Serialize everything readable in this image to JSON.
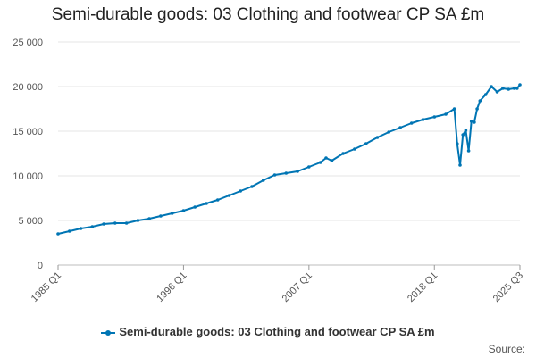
{
  "chart_data": {
    "type": "line",
    "title": "Semi-durable goods: 03 Clothing and footwear CP SA £m",
    "xlabel": "",
    "ylabel": "",
    "ylim": [
      0,
      25000
    ],
    "yticks": [
      0,
      5000,
      10000,
      15000,
      20000,
      25000
    ],
    "ytick_labels": [
      "0",
      "5 000",
      "10 000",
      "15 000",
      "20 000",
      "25 000"
    ],
    "xticks": [
      "1985 Q1",
      "1996 Q1",
      "2007 Q1",
      "2018 Q1",
      "2025 Q3"
    ],
    "x_start": "1985 Q1",
    "x_end": "2025 Q3",
    "grid": "horizontal",
    "legend_position": "bottom",
    "series": [
      {
        "name": "Semi-durable goods: 03 Clothing and footwear CP SA £m",
        "color": "#0075b4",
        "marker": "circle",
        "x": [
          "1985 Q1",
          "1986 Q1",
          "1987 Q1",
          "1988 Q1",
          "1989 Q1",
          "1990 Q1",
          "1991 Q1",
          "1992 Q1",
          "1993 Q1",
          "1994 Q1",
          "1995 Q1",
          "1996 Q1",
          "1997 Q1",
          "1998 Q1",
          "1999 Q1",
          "2000 Q1",
          "2001 Q1",
          "2002 Q1",
          "2003 Q1",
          "2004 Q1",
          "2005 Q1",
          "2006 Q1",
          "2007 Q1",
          "2008 Q1",
          "2008 Q3",
          "2009 Q1",
          "2010 Q1",
          "2011 Q1",
          "2012 Q1",
          "2013 Q1",
          "2014 Q1",
          "2015 Q1",
          "2016 Q1",
          "2017 Q1",
          "2018 Q1",
          "2019 Q1",
          "2019 Q4",
          "2020 Q1",
          "2020 Q2",
          "2020 Q3",
          "2020 Q4",
          "2021 Q1",
          "2021 Q2",
          "2021 Q3",
          "2021 Q4",
          "2022 Q1",
          "2022 Q3",
          "2023 Q1",
          "2023 Q3",
          "2024 Q1",
          "2024 Q3",
          "2025 Q1",
          "2025 Q2",
          "2025 Q3"
        ],
        "values": [
          3500,
          3800,
          4100,
          4300,
          4600,
          4700,
          4700,
          5000,
          5200,
          5500,
          5800,
          6100,
          6500,
          6900,
          7300,
          7800,
          8300,
          8800,
          9500,
          10100,
          10300,
          10500,
          11000,
          11500,
          12000,
          11700,
          12500,
          13000,
          13600,
          14300,
          14900,
          15400,
          15900,
          16300,
          16600,
          16900,
          17500,
          13600,
          11200,
          14600,
          15100,
          12800,
          16100,
          16000,
          17500,
          18400,
          19100,
          20000,
          19400,
          19800,
          19700,
          19800,
          19800,
          20200
        ]
      }
    ]
  },
  "legend": {
    "label": "Semi-durable goods: 03 Clothing and footwear CP SA £m"
  },
  "source": {
    "label": "Source:"
  }
}
